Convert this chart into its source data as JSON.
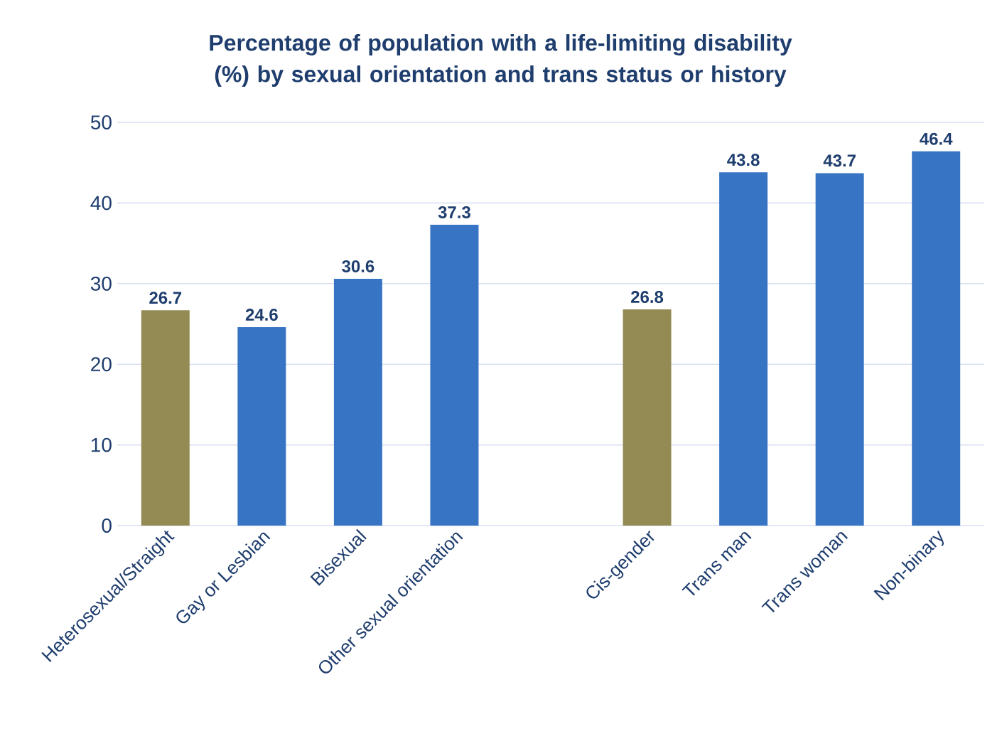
{
  "chart_data": {
    "type": "bar",
    "title": "Percentage of population with a life-limiting disability (%) by sexual orientation and trans status or history",
    "categories": [
      "Heterosexual/Straight",
      "Gay or Lesbian",
      "Bisexual",
      "Other sexual orientation",
      null,
      "Cis-gender",
      "Trans man",
      "Trans woman",
      "Non-binary"
    ],
    "values": [
      26.7,
      24.6,
      30.6,
      37.3,
      null,
      26.8,
      43.8,
      43.7,
      46.4
    ],
    "colors": [
      "#948a54",
      "#3874c4",
      "#3874c4",
      "#3874c4",
      "#3874c4",
      "#948a54",
      "#3874c4",
      "#3874c4",
      "#3874c4"
    ],
    "ylim": [
      0,
      50
    ],
    "yticks": [
      0,
      10,
      20,
      30,
      40,
      50
    ],
    "grid": "y",
    "data_labels": true
  }
}
